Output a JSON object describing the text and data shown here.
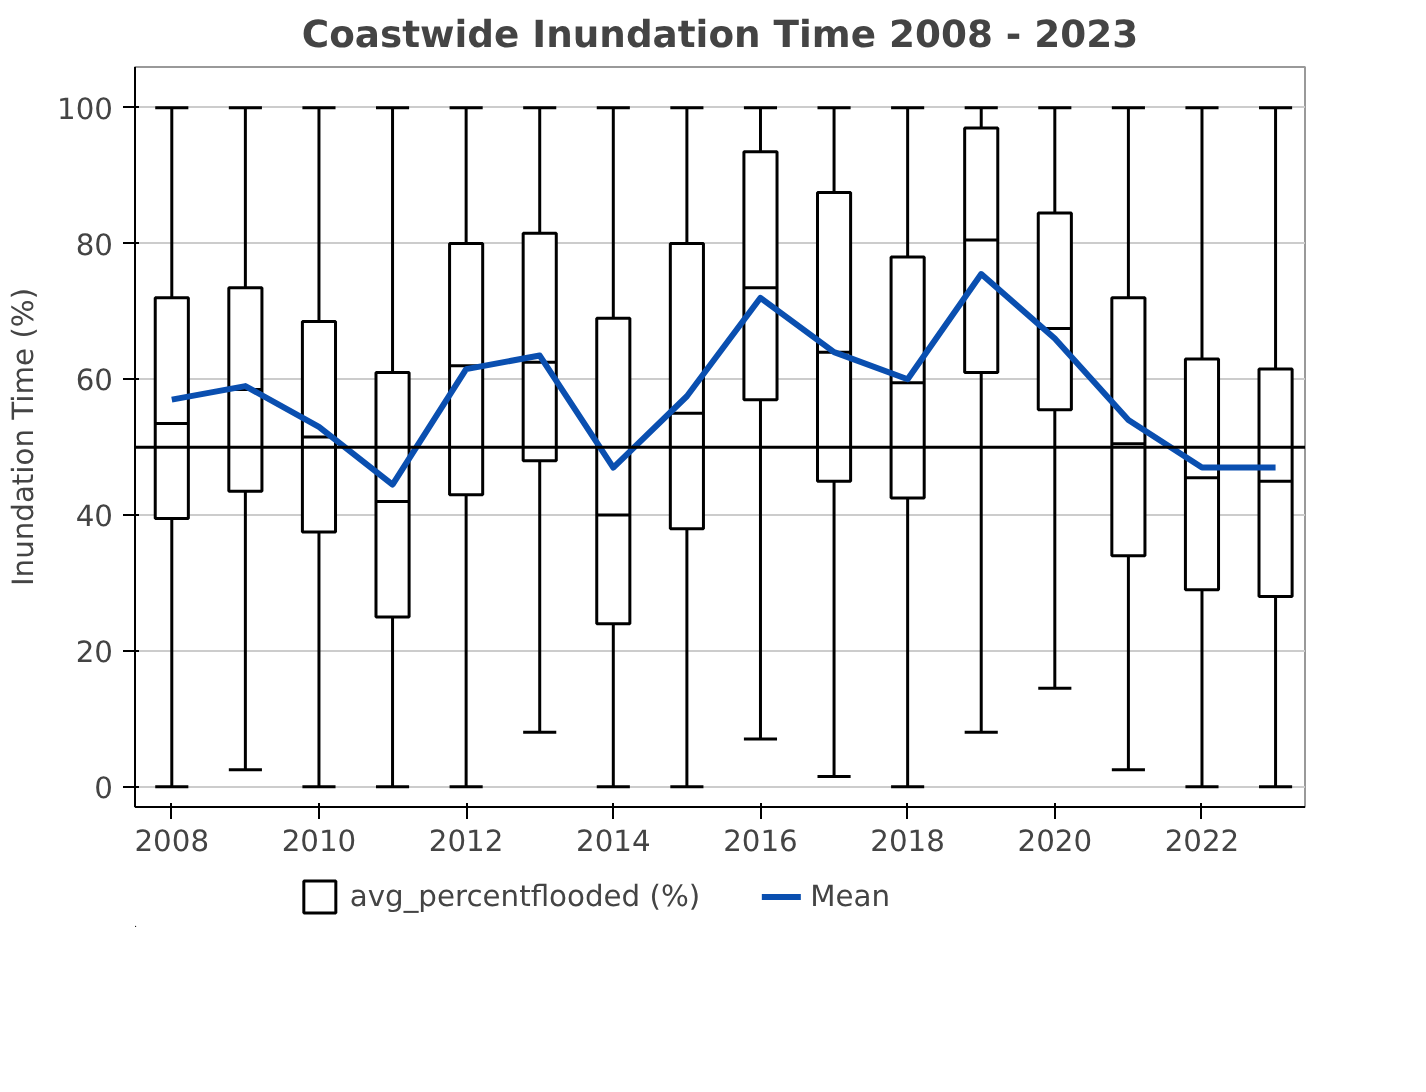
{
  "chart_data": {
    "type": "box",
    "title": "Coastwide Inundation Time 2008 - 2023",
    "ylabel": "Inundation Time (%)",
    "x": [
      2008,
      2009,
      2010,
      2011,
      2012,
      2013,
      2014,
      2015,
      2016,
      2017,
      2018,
      2019,
      2020,
      2021,
      2022,
      2023
    ],
    "xlim": [
      2007.5,
      2023.4
    ],
    "xticks": [
      2008,
      2010,
      2012,
      2014,
      2016,
      2018,
      2020,
      2022
    ],
    "ylim": [
      -3,
      106
    ],
    "yticks": [
      0,
      20,
      40,
      60,
      80,
      100
    ],
    "grid": "y",
    "legend": "bottom",
    "series": [
      {
        "name": "avg_percentflooded (%)",
        "type": "box",
        "color": "#000000",
        "boxes": [
          {
            "low": 0,
            "q1": 39.5,
            "median": 53.5,
            "q3": 72,
            "high": 100
          },
          {
            "low": 2.5,
            "q1": 43.5,
            "median": 58.5,
            "q3": 73.5,
            "high": 100
          },
          {
            "low": 0,
            "q1": 37.5,
            "median": 51.5,
            "q3": 68.5,
            "high": 100
          },
          {
            "low": 0,
            "q1": 25,
            "median": 42,
            "q3": 61,
            "high": 100
          },
          {
            "low": 0,
            "q1": 43,
            "median": 62,
            "q3": 80,
            "high": 100
          },
          {
            "low": 8,
            "q1": 48,
            "median": 62.5,
            "q3": 81.5,
            "high": 100
          },
          {
            "low": 0,
            "q1": 24,
            "median": 40,
            "q3": 69,
            "high": 100
          },
          {
            "low": 0,
            "q1": 38,
            "median": 55,
            "q3": 80,
            "high": 100
          },
          {
            "low": 7,
            "q1": 57,
            "median": 73.5,
            "q3": 93.5,
            "high": 100
          },
          {
            "low": 1.5,
            "q1": 45,
            "median": 64,
            "q3": 87.5,
            "high": 100
          },
          {
            "low": 0,
            "q1": 42.5,
            "median": 59.5,
            "q3": 78,
            "high": 100
          },
          {
            "low": 8,
            "q1": 61,
            "median": 80.5,
            "q3": 97,
            "high": 100
          },
          {
            "low": 14.5,
            "q1": 55.5,
            "median": 67.5,
            "q3": 84.5,
            "high": 100
          },
          {
            "low": 2.5,
            "q1": 34,
            "median": 50.5,
            "q3": 72,
            "high": 100
          },
          {
            "low": 0,
            "q1": 29,
            "median": 45.5,
            "q3": 63,
            "high": 100
          },
          {
            "low": 0,
            "q1": 28,
            "median": 45,
            "q3": 61.5,
            "high": 100
          }
        ]
      },
      {
        "name": "Mean",
        "type": "line",
        "color": "#0a4fb0",
        "values": [
          57,
          59,
          53,
          44.5,
          61.5,
          63.5,
          47,
          57.5,
          72,
          64,
          60,
          75.5,
          66,
          54,
          47,
          47
        ]
      }
    ],
    "ref_lines": [
      {
        "axis": "y",
        "value": 50,
        "color": "#000000"
      }
    ]
  }
}
